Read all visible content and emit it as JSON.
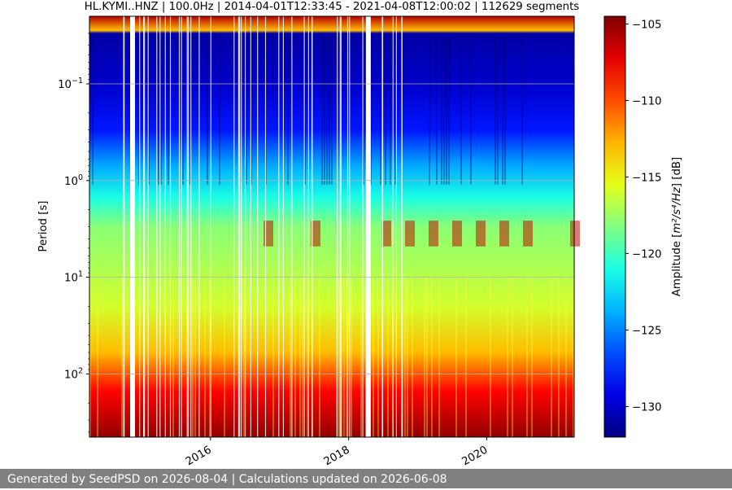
{
  "chart_data": {
    "type": "heatmap",
    "title": "HL.KYMI..HNZ | 100.0Hz | 2014-04-01T12:33:45 - 2021-04-08T12:00:02 | 112629 segments",
    "xlabel": "",
    "ylabel": "Period [s]",
    "y_scale": "log",
    "y_inverted": true,
    "x_range": [
      "2014-04-01",
      "2021-04-08"
    ],
    "ylim": [
      0.02,
      450
    ],
    "grid": true,
    "x_ticks": [
      "2016",
      "2018",
      "2020"
    ],
    "y_ticks": [
      {
        "value": 0.1,
        "base": "10",
        "exp": "−1"
      },
      {
        "value": 1,
        "base": "10",
        "exp": "0"
      },
      {
        "value": 10,
        "base": "10",
        "exp": "1"
      },
      {
        "value": 100,
        "base": "10",
        "exp": "2"
      }
    ],
    "colorbar": {
      "label_prefix": "Amplitude [",
      "label_unit": "m²/s⁴/Hz",
      "label_suffix": "] [dB]",
      "colormap": "jet",
      "range": [
        -132,
        -104.5
      ],
      "ticks": [
        "−105",
        "−110",
        "−115",
        "−120",
        "−125",
        "−130"
      ]
    },
    "data_gaps": [
      "2014-11",
      "2018-04"
    ],
    "period_profile": [
      {
        "period": 0.02,
        "db": -106
      },
      {
        "period": 0.028,
        "db": -113
      },
      {
        "period": 0.03,
        "db": -131
      },
      {
        "period": 0.1,
        "db": -130
      },
      {
        "period": 0.3,
        "db": -128
      },
      {
        "period": 0.7,
        "db": -124
      },
      {
        "period": 1.5,
        "db": -121
      },
      {
        "period": 3,
        "db": -118
      },
      {
        "period": 8,
        "db": -117
      },
      {
        "period": 20,
        "db": -116
      },
      {
        "period": 60,
        "db": -113
      },
      {
        "period": 150,
        "db": -108
      },
      {
        "period": 450,
        "db": -105
      }
    ]
  },
  "footer": {
    "text": "Generated by SeedPSD on 2026-08-04 | Calculations updated on 2026-06-08"
  }
}
